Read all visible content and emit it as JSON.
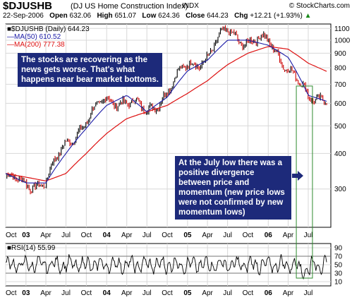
{
  "header": {
    "ticker": "$DJUSHB",
    "name": "(DJ US Home Construction Index)",
    "index_tag": "INDX",
    "copyright": "© StockCharts.com",
    "date": "22-Sep-2006",
    "open_label": "Open",
    "open": "632.06",
    "high_label": "High",
    "high": "651.07",
    "low_label": "Low",
    "low": "624.36",
    "close_label": "Close",
    "close": "644.23",
    "chg_label": "Chg",
    "chg": "+12.21 (+1.93%)",
    "chg_arrow": "▲"
  },
  "price_panel": {
    "legend_symbol": "■$DJUSHB (Daily) 644.23",
    "legend_ma50": "—MA(50) 610.52",
    "legend_ma200": "—MA(200) 777.38"
  },
  "rsi_panel": {
    "legend": "■RSI(14) 55.99"
  },
  "annotations": {
    "note1": "The stocks are recovering as the news gets worse. That's what happens near bear market bottoms.",
    "note2": "At the July low there was a positive divergence between price and momentum (new price lows were not confirmed by new momentum lows)"
  },
  "colors": {
    "price_up": "#000000",
    "price_down": "#cc0000",
    "ma50": "#1a1aa6",
    "ma200": "#dd1111",
    "grid": "#d8d8d8",
    "annotation_bg": "#1d2a7a",
    "highlight_box": "#2e8b2e",
    "arrow": "#1d2a7a"
  },
  "x_axis": {
    "tick_labels": [
      "Oct",
      "03",
      "Apr",
      "Jul",
      "Oct",
      "04",
      "Apr",
      "Jul",
      "Oct",
      "05",
      "Apr",
      "Jul",
      "Oct",
      "06",
      "Apr",
      "Jul"
    ]
  },
  "chart_data": [
    {
      "type": "line",
      "title": "",
      "x": [
        "2002-10",
        "2003-01",
        "2003-04",
        "2003-07",
        "2003-10",
        "2004-01",
        "2004-04",
        "2004-07",
        "2004-10",
        "2005-01",
        "2005-04",
        "2005-07",
        "2005-10",
        "2006-01",
        "2006-04",
        "2006-07",
        "2006-09"
      ],
      "series": [
        {
          "name": "$DJUSHB",
          "values": [
            330,
            310,
            320,
            430,
            520,
            620,
            610,
            560,
            660,
            820,
            870,
            1090,
            980,
            1000,
            800,
            620,
            644
          ]
        },
        {
          "name": "MA(50)",
          "values": [
            340,
            315,
            315,
            400,
            490,
            590,
            640,
            560,
            630,
            780,
            850,
            1000,
            1000,
            960,
            870,
            640,
            610
          ]
        },
        {
          "name": "MA(200)",
          "values": [
            340,
            330,
            320,
            340,
            400,
            470,
            530,
            560,
            590,
            650,
            720,
            820,
            900,
            950,
            930,
            830,
            777
          ]
        }
      ],
      "ylim": [
        220,
        1140
      ],
      "yticks": [
        300,
        400,
        500,
        600,
        700,
        800,
        900,
        1000,
        1100
      ],
      "y_scale": "log",
      "grid": true,
      "legend": "top-left"
    },
    {
      "type": "line",
      "title": "",
      "series": [
        {
          "name": "RSI(14)",
          "values": [
            55.99
          ]
        }
      ],
      "ylim": [
        0,
        100
      ],
      "yticks": [
        10,
        30,
        50,
        70,
        90
      ],
      "reference_lines": [
        30,
        70
      ],
      "grid": true,
      "legend": "top-left"
    }
  ]
}
